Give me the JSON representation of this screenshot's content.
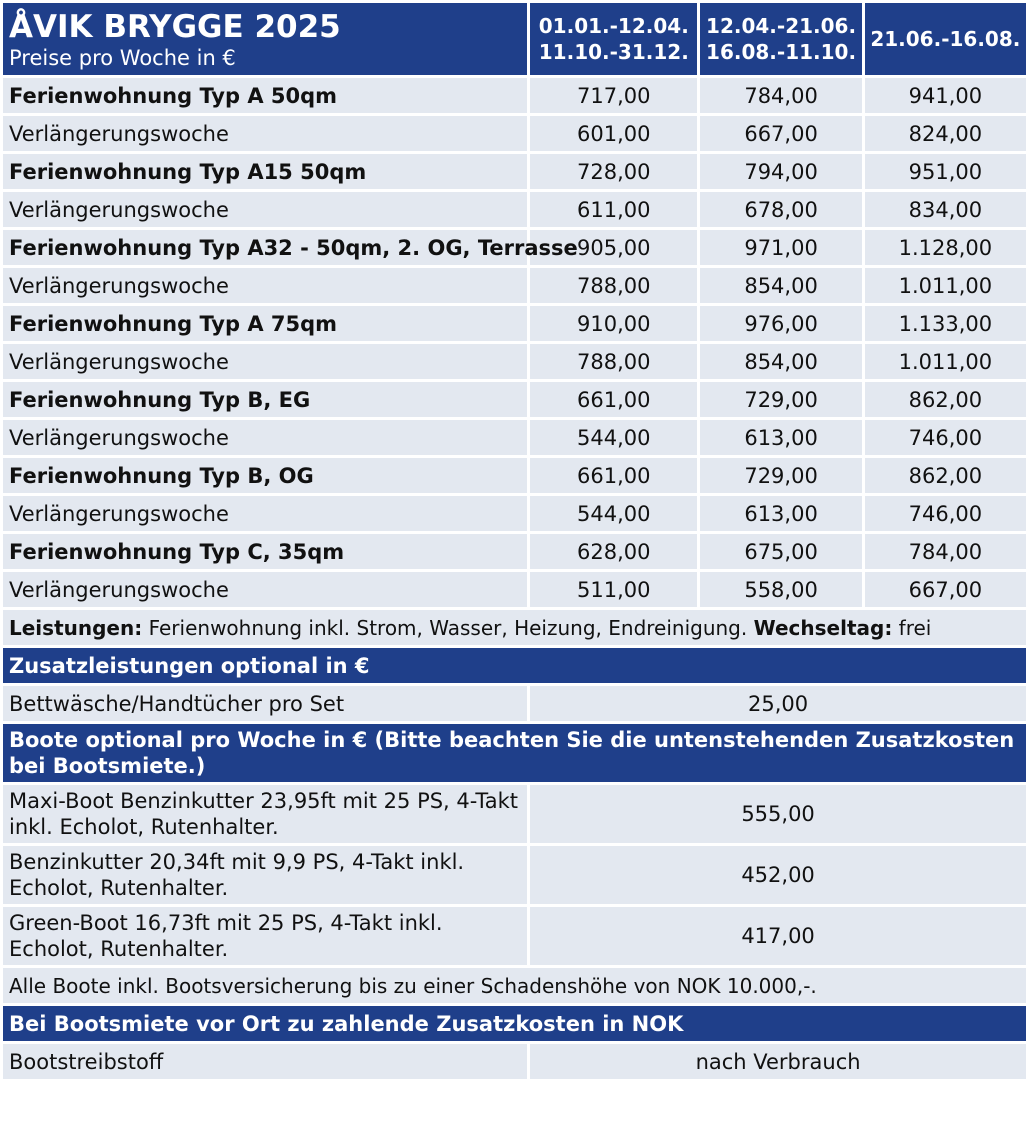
{
  "header": {
    "title": "ÅVIK BRYGGE 2025",
    "subtitle": "Preise pro Woche in €",
    "seasons": [
      {
        "line1": "01.01.-12.04.",
        "line2": "11.10.-31.12."
      },
      {
        "line1": "12.04.-21.06.",
        "line2": "16.08.-11.10."
      },
      {
        "line1": "21.06.-16.08.",
        "line2": ""
      }
    ]
  },
  "apartments": [
    {
      "name": "Ferienwohnung Typ A 50qm",
      "prices": [
        "717,00",
        "784,00",
        "941,00"
      ],
      "ext_label": "Verlängerungswoche",
      "ext_prices": [
        "601,00",
        "667,00",
        "824,00"
      ]
    },
    {
      "name": "Ferienwohnung Typ A15 50qm",
      "prices": [
        "728,00",
        "794,00",
        "951,00"
      ],
      "ext_label": "Verlängerungswoche",
      "ext_prices": [
        "611,00",
        "678,00",
        "834,00"
      ]
    },
    {
      "name": "Ferienwohnung Typ A32 - 50qm, 2. OG, Terrasse",
      "prices": [
        "905,00",
        "971,00",
        "1.128,00"
      ],
      "ext_label": "Verlängerungswoche",
      "ext_prices": [
        "788,00",
        "854,00",
        "1.011,00"
      ]
    },
    {
      "name": "Ferienwohnung Typ A 75qm",
      "prices": [
        "910,00",
        "976,00",
        "1.133,00"
      ],
      "ext_label": "Verlängerungswoche",
      "ext_prices": [
        "788,00",
        "854,00",
        "1.011,00"
      ]
    },
    {
      "name": "Ferienwohnung Typ B, EG",
      "prices": [
        "661,00",
        "729,00",
        "862,00"
      ],
      "ext_label": "Verlängerungswoche",
      "ext_prices": [
        "544,00",
        "613,00",
        "746,00"
      ]
    },
    {
      "name": "Ferienwohnung Typ B, OG",
      "prices": [
        "661,00",
        "729,00",
        "862,00"
      ],
      "ext_label": "Verlängerungswoche",
      "ext_prices": [
        "544,00",
        "613,00",
        "746,00"
      ]
    },
    {
      "name": "Ferienwohnung Typ C, 35qm",
      "prices": [
        "628,00",
        "675,00",
        "784,00"
      ],
      "ext_label": "Verlängerungswoche",
      "ext_prices": [
        "511,00",
        "558,00",
        "667,00"
      ]
    }
  ],
  "services": {
    "label": "Leistungen:",
    "text": "Ferienwohnung inkl. Strom, Wasser, Heizung, Endreinigung.",
    "change_day_label": "Wechseltag:",
    "change_day_value": "frei"
  },
  "extras": {
    "title": "Zusatzleistungen optional in €",
    "items": [
      {
        "label": "Bettwäsche/Handtücher pro Set",
        "price": "25,00"
      }
    ]
  },
  "boats": {
    "title": "Boote optional pro Woche in € (Bitte beachten Sie die untenstehenden Zusatzkosten bei Bootsmiete.)",
    "items": [
      {
        "label": "Maxi-Boot Benzinkutter 23,95ft mit 25 PS, 4-Takt inkl. Echolot, Rutenhalter.",
        "price": "555,00"
      },
      {
        "label": "Benzinkutter 20,34ft mit 9,9 PS, 4-Takt inkl. Echolot, Rutenhalter.",
        "price": "452,00"
      },
      {
        "label": "Green-Boot 16,73ft mit 25 PS, 4-Takt inkl. Echolot, Rutenhalter.",
        "price": "417,00"
      }
    ],
    "insurance_note": "Alle Boote inkl. Bootsversicherung bis zu einer Schadenshöhe von NOK 10.000,-."
  },
  "local_costs": {
    "title": "Bei Bootsmiete vor Ort zu zahlende Zusatzkosten in NOK",
    "items": [
      {
        "label": "Bootstreibstoff",
        "value": "nach Verbrauch"
      }
    ]
  },
  "colors": {
    "header_blue": "#1f3f8a",
    "cell_bg": "#e3e8f0"
  }
}
